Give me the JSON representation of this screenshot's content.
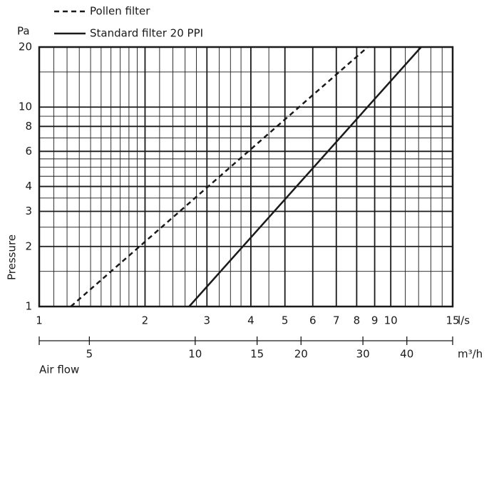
{
  "chart_data": {
    "type": "line",
    "y_unit": "Pa",
    "x_unit": "l/s",
    "ylabel": "Pressure",
    "x2label": "Air flow",
    "x2_unit": "m³/h",
    "xscale": "log",
    "yscale": "log",
    "grid": true,
    "xlim": [
      1,
      15
    ],
    "ylim": [
      1,
      20
    ],
    "xticks": [
      1,
      2,
      3,
      4,
      5,
      6,
      7,
      8,
      9,
      10,
      15
    ],
    "yticks": [
      1,
      2,
      3,
      4,
      6,
      8,
      10,
      20
    ],
    "x_minor_grid": [
      1.1,
      1.2,
      1.3,
      1.4,
      1.5,
      1.6,
      1.7,
      1.8,
      1.9,
      2.2,
      2.4,
      2.6,
      2.8,
      3.25,
      3.5,
      3.75,
      4.5,
      11,
      12,
      13,
      14
    ],
    "y_minor_grid": [
      1.5,
      2.5,
      3.5,
      4.5,
      5,
      5.5,
      7,
      9,
      15
    ],
    "x2lim": [
      3.6,
      54
    ],
    "x2ticks": [
      5,
      10,
      15,
      20,
      30,
      40
    ],
    "series": [
      {
        "name": "Pollen filter",
        "color": "#1a1a1a",
        "dash": true,
        "x": [
          1.23,
          8.6
        ],
        "values": [
          1,
          20
        ]
      },
      {
        "name": "Standard filter 20 PPI",
        "color": "#1a1a1a",
        "dash": false,
        "x": [
          2.67,
          12.2
        ],
        "values": [
          1,
          20
        ]
      }
    ]
  }
}
